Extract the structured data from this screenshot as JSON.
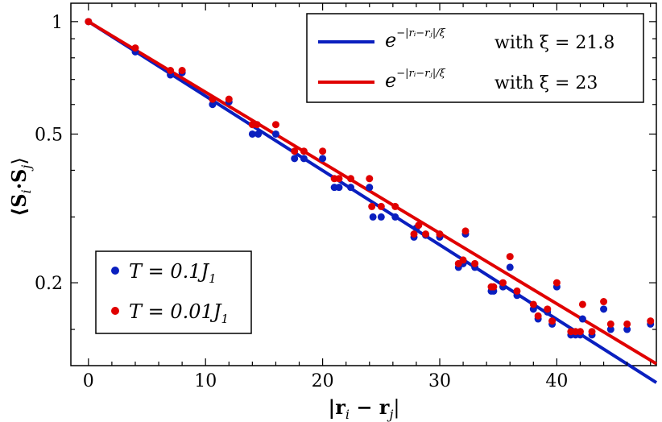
{
  "chart_data": {
    "type": "scatter",
    "xlabel": "|r_i − r_j|",
    "ylabel": "⟨S_i · S_j⟩",
    "xlim": [
      -1.5,
      48.5
    ],
    "ylim": [
      0.12,
      1.12
    ],
    "yscale": "log",
    "x_ticks": [
      {
        "value": 0,
        "label": "0"
      },
      {
        "value": 10,
        "label": "10"
      },
      {
        "value": 20,
        "label": "20"
      },
      {
        "value": 30,
        "label": "30"
      },
      {
        "value": 40,
        "label": "40"
      }
    ],
    "y_ticks": [
      {
        "value": 1,
        "label": "1"
      },
      {
        "value": 0.5,
        "label": "0.5"
      },
      {
        "value": 0.2,
        "label": "0.2"
      }
    ],
    "y_minor_ticks": [
      0.9,
      0.8,
      0.7,
      0.6,
      0.4,
      0.3,
      0.15
    ],
    "fits": [
      {
        "name": "e^{-|r_i - r_j|/ξ} with ξ = 21.8",
        "color": "#0a1fbf",
        "xi": 21.8,
        "x_range": [
          0,
          48.5
        ]
      },
      {
        "name": "e^{-|r_i - r_j|/ξ} with ξ = 23",
        "color": "#e00000",
        "xi": 23,
        "x_range": [
          0,
          48.5
        ]
      }
    ],
    "series": [
      {
        "name": "T = 0.1 J_1",
        "color": "#0a1fbf",
        "x": [
          0,
          4,
          7,
          8,
          10.6,
          12,
          14,
          14.5,
          16,
          17.6,
          18.4,
          20,
          21,
          21.4,
          22.4,
          24,
          24.3,
          25,
          26.2,
          27.8,
          28,
          28.8,
          30,
          31.6,
          32,
          32.2,
          33,
          34.4,
          34.6,
          35.4,
          36,
          36.6,
          38,
          38.4,
          39.2,
          39.6,
          40,
          41.2,
          41.6,
          42,
          42.2,
          43,
          44,
          44.6,
          46,
          48
        ],
        "y": [
          1,
          0.83,
          0.72,
          0.73,
          0.6,
          0.61,
          0.5,
          0.5,
          0.5,
          0.43,
          0.43,
          0.43,
          0.36,
          0.36,
          0.36,
          0.36,
          0.3,
          0.3,
          0.3,
          0.265,
          0.28,
          0.268,
          0.265,
          0.22,
          0.225,
          0.27,
          0.22,
          0.19,
          0.19,
          0.195,
          0.22,
          0.185,
          0.17,
          0.16,
          0.167,
          0.155,
          0.195,
          0.145,
          0.145,
          0.145,
          0.16,
          0.145,
          0.17,
          0.15,
          0.15,
          0.155
        ]
      },
      {
        "name": "T = 0.01 J_1",
        "color": "#e00000",
        "x": [
          0,
          4,
          7,
          8,
          10.6,
          12,
          14,
          14.4,
          16,
          17.6,
          18.4,
          20,
          21,
          21.4,
          22.4,
          24,
          24.2,
          25,
          26.2,
          27.8,
          28.2,
          28.8,
          30,
          31.6,
          32,
          32.2,
          33,
          34.4,
          34.6,
          35.4,
          36,
          36.6,
          38,
          38.4,
          39.2,
          39.6,
          40,
          41.2,
          41.6,
          42,
          42.2,
          43,
          44,
          44.6,
          46,
          48
        ],
        "y": [
          1,
          0.85,
          0.74,
          0.74,
          0.62,
          0.62,
          0.53,
          0.53,
          0.53,
          0.45,
          0.45,
          0.45,
          0.38,
          0.38,
          0.38,
          0.38,
          0.32,
          0.32,
          0.32,
          0.27,
          0.285,
          0.27,
          0.27,
          0.225,
          0.23,
          0.275,
          0.225,
          0.195,
          0.195,
          0.2,
          0.235,
          0.19,
          0.175,
          0.163,
          0.17,
          0.158,
          0.2,
          0.148,
          0.148,
          0.148,
          0.175,
          0.148,
          0.178,
          0.155,
          0.155,
          0.158
        ]
      }
    ],
    "legends": [
      {
        "position": "top-right",
        "entries": [
          "fit_blue",
          "fit_red"
        ]
      },
      {
        "position": "bottom-left",
        "entries": [
          "series_blue",
          "series_red"
        ]
      }
    ]
  },
  "legend": {
    "fit_blue_label": "with ξ = 21.8",
    "fit_red_label": "with ξ = 23",
    "fit_formula": "e",
    "fit_exponent": "−|rᵢ−rⱼ|/ξ",
    "series_blue_label": "T = 0.1J",
    "series_red_label": "T = 0.01J",
    "series_subscript": "1"
  },
  "axes": {
    "xlabel_main": "|r",
    "xlabel_sub_i": "i",
    "xlabel_mid": " − r",
    "xlabel_sub_j": "j",
    "xlabel_end": "|",
    "ylabel_main": "⟨S",
    "ylabel_sub_i": "i",
    "ylabel_mid": "·S",
    "ylabel_sub_j": "j",
    "ylabel_end": "⟩"
  }
}
